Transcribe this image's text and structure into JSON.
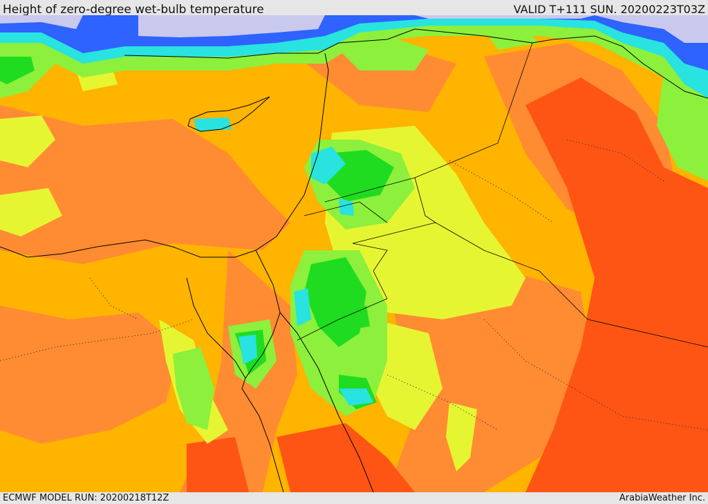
{
  "header": {
    "title": "Height of zero-degree wet-bulb temperature",
    "valid": "VALID T+111 SUN. 20200223T03Z"
  },
  "footer": {
    "model_run": "ECMWF MODEL RUN: 20200218T12Z",
    "credit": "ArabiaWeather Inc."
  },
  "map": {
    "palette": {
      "sea_lavender": "#c9c9ee",
      "blue": "#2f63ff",
      "light_blue": "#61b5ff",
      "cyan": "#28e3df",
      "green": "#20dc20",
      "light_green": "#8cf03c",
      "yellow": "#e6f532",
      "orange_light": "#ffb400",
      "orange": "#ff8c32",
      "red_orange": "#ff5514",
      "border": "#000000"
    }
  }
}
